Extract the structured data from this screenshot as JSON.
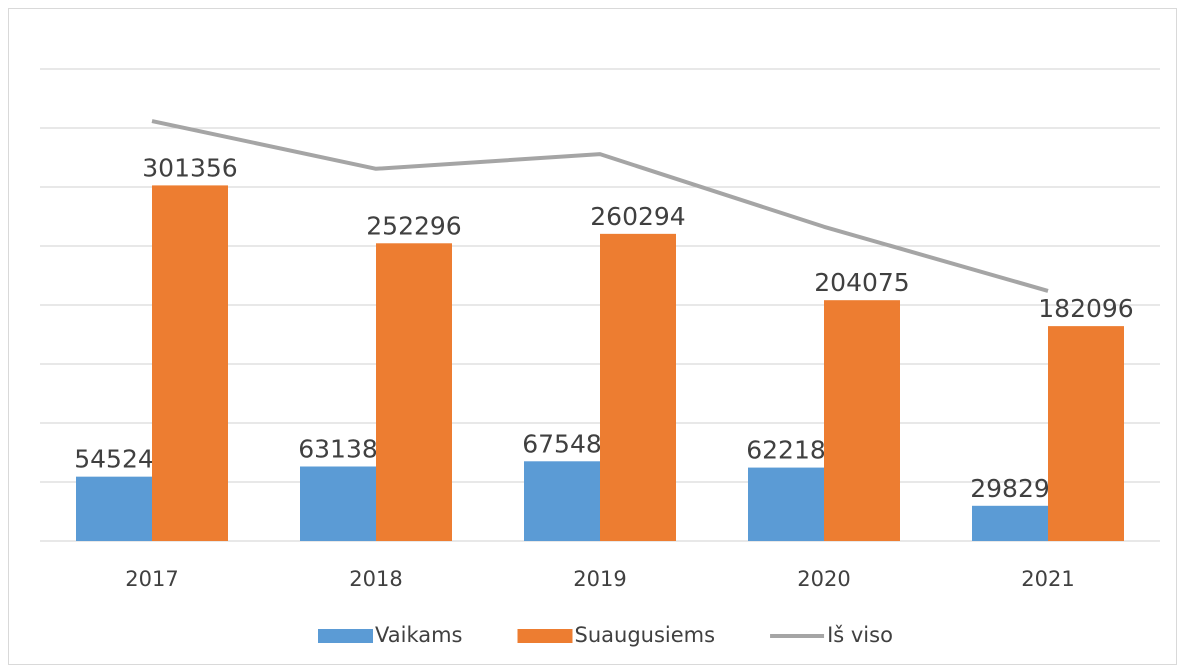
{
  "chart_data": {
    "type": "bar-line",
    "categories": [
      "2017",
      "2018",
      "2019",
      "2020",
      "2021"
    ],
    "series": [
      {
        "name": "Vaikams",
        "type": "bar",
        "color": "#5b9bd5",
        "values": [
          54524,
          63138,
          67548,
          62218,
          29829
        ]
      },
      {
        "name": "Suaugusiems",
        "type": "bar",
        "color": "#ed7d31",
        "values": [
          301356,
          252296,
          260294,
          204075,
          182096
        ]
      },
      {
        "name": "Iš viso",
        "type": "line",
        "color": "#a5a5a5",
        "values": [
          355880,
          315434,
          327842,
          266293,
          211925
        ]
      }
    ],
    "ylim": [
      0,
      400000
    ],
    "yticks": [
      0,
      50000,
      100000,
      150000,
      200000,
      250000,
      300000,
      350000,
      400000
    ],
    "grid": true,
    "legend": "bottom"
  }
}
